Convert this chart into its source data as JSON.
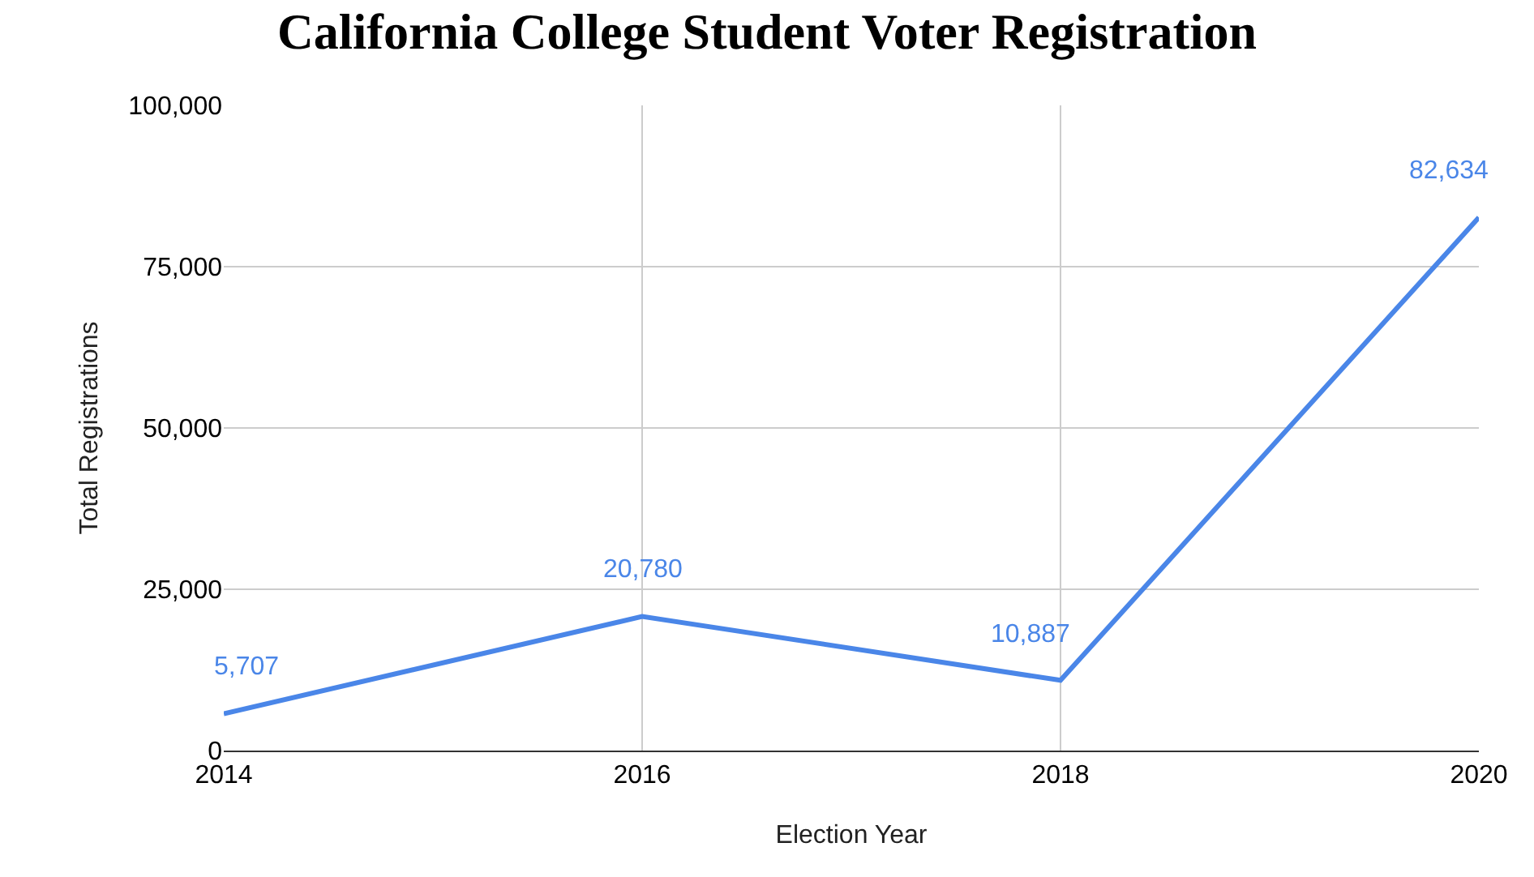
{
  "chart_data": {
    "type": "line",
    "title": "California College Student Voter Registration",
    "xlabel": "Election Year",
    "ylabel": "Total Registrations",
    "x": [
      2014,
      2016,
      2018,
      2020
    ],
    "series": [
      {
        "color": "#4a86e8",
        "values": [
          5707,
          20780,
          10887,
          82634
        ],
        "value_labels": [
          "5,707",
          "20,780",
          "10,887",
          "82,634"
        ]
      }
    ],
    "xlim": [
      2014,
      2020
    ],
    "xticks": [
      2014,
      2016,
      2018,
      2020
    ],
    "ylim": [
      0,
      100000
    ],
    "yticks": [
      0,
      {
        "value": 25000,
        "label": "25,000"
      },
      {
        "value": 50000,
        "label": "50,000"
      },
      {
        "value": 75000,
        "label": "75,000"
      },
      {
        "value": 100000,
        "label": "100,000"
      }
    ],
    "grid": true,
    "legend": false,
    "marker": "none",
    "line_style": "solid"
  }
}
